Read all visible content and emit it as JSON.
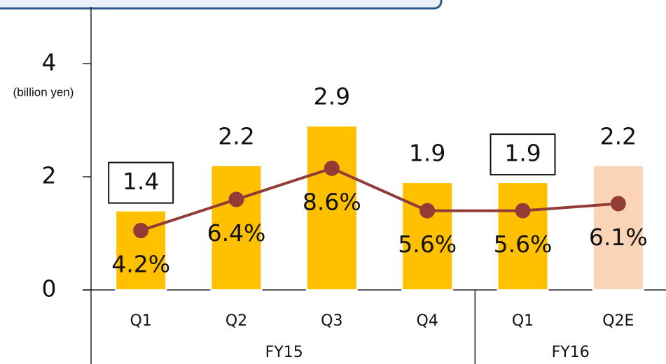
{
  "chart_data": {
    "type": "combo",
    "y_label": "(billion yen)",
    "groups": [
      {
        "label": "FY15",
        "categories": [
          "Q1",
          "Q2",
          "Q3",
          "Q4"
        ]
      },
      {
        "label": "FY16",
        "categories": [
          "Q1",
          "Q2E"
        ]
      }
    ],
    "ylim": [
      0,
      5
    ],
    "yticks": [
      0,
      2,
      4
    ],
    "y2lim": [
      0,
      20
    ],
    "series": [
      {
        "type": "bar",
        "values": [
          1.4,
          2.2,
          2.9,
          1.9,
          1.9,
          2.2
        ],
        "colors": [
          "#ffc000",
          "#ffc000",
          "#ffc000",
          "#ffc000",
          "#ffc000",
          "#fbd3b6"
        ],
        "label_boxed": [
          true,
          false,
          false,
          false,
          true,
          false
        ]
      },
      {
        "type": "line",
        "axis": "y2",
        "color": "#923c38",
        "values": [
          4.2,
          6.4,
          8.6,
          5.6,
          5.6,
          6.1
        ],
        "value_labels": [
          "4.2%",
          "6.4%",
          "8.6%",
          "5.6%",
          "5.6%",
          "6.1%"
        ]
      }
    ]
  }
}
